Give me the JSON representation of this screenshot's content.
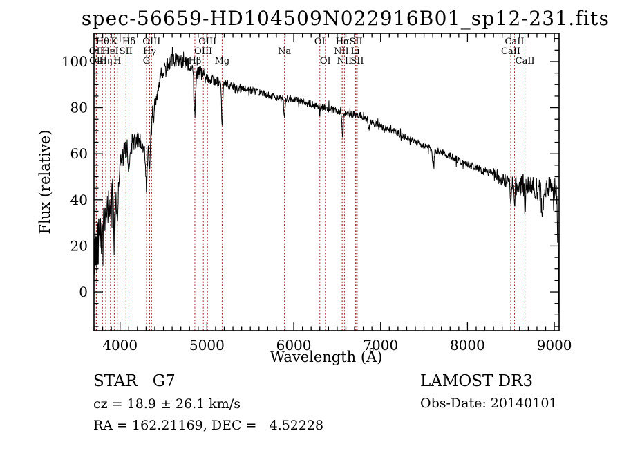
{
  "chart_data": {
    "type": "line",
    "title": "spec-56659-HD104509N022916B01_sp12-231.fits",
    "xlabel": "Wavelength (Å)",
    "ylabel": "Flux (relative)",
    "xlim": [
      3700,
      9055
    ],
    "ylim": [
      -16.8,
      112.3
    ],
    "xticks": [
      4000,
      5000,
      6000,
      7000,
      8000,
      9000
    ],
    "yticks": [
      0,
      20,
      40,
      60,
      80,
      100
    ],
    "x_minor_step": 100,
    "y_minor_step": 5,
    "grid": false,
    "frame_color": "#000000",
    "line_color": "#000000",
    "marker_line_color": "#8e2323",
    "series_name": "spectrum",
    "marker_lines": [
      {
        "label": "OII",
        "wavelength": 3726.0,
        "row": 2
      },
      {
        "label": "OII",
        "wavelength": 3728.8,
        "row": 3
      },
      {
        "label": "Hθ",
        "wavelength": 3798.0,
        "row": 1
      },
      {
        "label": "Hη",
        "wavelength": 3835.4,
        "row": 3
      },
      {
        "label": "HeI",
        "wavelength": 3889.0,
        "row": 2
      },
      {
        "label": "K",
        "wavelength": 3933.7,
        "row": 1
      },
      {
        "label": "H",
        "wavelength": 3968.5,
        "row": 3
      },
      {
        "label": "SII",
        "wavelength": 4068.6,
        "row": 2
      },
      {
        "label": "Hδ",
        "wavelength": 4101.7,
        "row": 1
      },
      {
        "label": "G",
        "wavelength": 4304.4,
        "row": 3
      },
      {
        "label": "Hγ",
        "wavelength": 4340.5,
        "row": 2
      },
      {
        "label": "OIII",
        "wavelength": 4363.2,
        "row": 1
      },
      {
        "label": "Hβ",
        "wavelength": 4861.3,
        "row": 3
      },
      {
        "label": "OIII",
        "wavelength": 4958.9,
        "row": 2
      },
      {
        "label": "OIII",
        "wavelength": 5006.8,
        "row": 1
      },
      {
        "label": "Mg",
        "wavelength": 5175.3,
        "row": 3
      },
      {
        "label": "Na",
        "wavelength": 5892.9,
        "row": 2
      },
      {
        "label": "OI",
        "wavelength": 6300.3,
        "row": 1
      },
      {
        "label": "OI",
        "wavelength": 6363.8,
        "row": 3
      },
      {
        "label": "NII",
        "wavelength": 6548.0,
        "row": 2
      },
      {
        "label": "Hα",
        "wavelength": 6562.8,
        "row": 1
      },
      {
        "label": "NII",
        "wavelength": 6583.4,
        "row": 3
      },
      {
        "label": "Li",
        "wavelength": 6707.8,
        "row": 2
      },
      {
        "label": "SII",
        "wavelength": 6716.4,
        "row": 1
      },
      {
        "label": "SII",
        "wavelength": 6730.8,
        "row": 3
      },
      {
        "label": "CaII",
        "wavelength": 8498.0,
        "row": 2
      },
      {
        "label": "CaII",
        "wavelength": 8542.1,
        "row": 1
      },
      {
        "label": "CaII",
        "wavelength": 8662.1,
        "row": 3
      }
    ],
    "continuum": [
      [
        3700,
        14
      ],
      [
        3740,
        22
      ],
      [
        3780,
        27
      ],
      [
        3820,
        32
      ],
      [
        3860,
        36
      ],
      [
        3900,
        44
      ],
      [
        3950,
        46
      ],
      [
        4000,
        55
      ],
      [
        4060,
        62
      ],
      [
        4120,
        64
      ],
      [
        4180,
        66
      ],
      [
        4240,
        64
      ],
      [
        4300,
        60
      ],
      [
        4360,
        70
      ],
      [
        4420,
        85
      ],
      [
        4470,
        94
      ],
      [
        4520,
        98
      ],
      [
        4580,
        100
      ],
      [
        4650,
        101
      ],
      [
        4720,
        100
      ],
      [
        4800,
        98
      ],
      [
        4861,
        94
      ],
      [
        4920,
        95
      ],
      [
        5000,
        93
      ],
      [
        5080,
        92
      ],
      [
        5175,
        90
      ],
      [
        5260,
        90
      ],
      [
        5350,
        88
      ],
      [
        5450,
        88
      ],
      [
        5550,
        87
      ],
      [
        5650,
        86
      ],
      [
        5750,
        85
      ],
      [
        5850,
        84
      ],
      [
        5950,
        84
      ],
      [
        6050,
        83
      ],
      [
        6150,
        82
      ],
      [
        6250,
        81
      ],
      [
        6350,
        80
      ],
      [
        6450,
        79
      ],
      [
        6563,
        78
      ],
      [
        6650,
        77
      ],
      [
        6750,
        77
      ],
      [
        6850,
        75
      ],
      [
        6950,
        73
      ],
      [
        7050,
        71
      ],
      [
        7150,
        70
      ],
      [
        7250,
        68
      ],
      [
        7350,
        66
      ],
      [
        7450,
        64
      ],
      [
        7550,
        63
      ],
      [
        7650,
        61
      ],
      [
        7750,
        60
      ],
      [
        7850,
        58
      ],
      [
        7950,
        56
      ],
      [
        8050,
        55
      ],
      [
        8150,
        53
      ],
      [
        8250,
        52
      ],
      [
        8350,
        50
      ],
      [
        8450,
        48
      ],
      [
        8550,
        47
      ],
      [
        8650,
        46
      ],
      [
        8750,
        45
      ],
      [
        8850,
        44
      ],
      [
        8950,
        46
      ],
      [
        9020,
        45
      ],
      [
        9040,
        30
      ],
      [
        9052,
        2
      ]
    ],
    "absorption_dips": [
      {
        "line": "Hθ",
        "wavelength": 3798.0,
        "sigma": 6,
        "depth": 8
      },
      {
        "line": "Hη",
        "wavelength": 3835.4,
        "sigma": 6,
        "depth": 8
      },
      {
        "line": "HeI",
        "wavelength": 3889.0,
        "sigma": 6,
        "depth": 7
      },
      {
        "line": "CaII K",
        "wavelength": 3933.7,
        "sigma": 9,
        "depth": 22
      },
      {
        "line": "CaII H",
        "wavelength": 3968.5,
        "sigma": 9,
        "depth": 18
      },
      {
        "line": "SII",
        "wavelength": 4068.6,
        "sigma": 4,
        "depth": 5
      },
      {
        "line": "Hδ",
        "wavelength": 4101.7,
        "sigma": 8,
        "depth": 13
      },
      {
        "line": "G band",
        "wavelength": 4304.4,
        "sigma": 11,
        "depth": 13
      },
      {
        "line": "Hγ",
        "wavelength": 4340.5,
        "sigma": 8,
        "depth": 12
      },
      {
        "line": "Hβ",
        "wavelength": 4861.3,
        "sigma": 8,
        "depth": 16
      },
      {
        "line": "Mg",
        "wavelength": 5175.3,
        "sigma": 7,
        "depth": 18
      },
      {
        "line": "Na",
        "wavelength": 5892.9,
        "sigma": 7,
        "depth": 9
      },
      {
        "line": "OI",
        "wavelength": 6300.3,
        "sigma": 4,
        "depth": 3
      },
      {
        "line": "Hα",
        "wavelength": 6562.8,
        "sigma": 7,
        "depth": 12
      },
      {
        "line": "tell-B",
        "wavelength": 6870.0,
        "sigma": 9,
        "depth": 5
      },
      {
        "line": "tell-A",
        "wavelength": 7605.0,
        "sigma": 10,
        "depth": 6
      },
      {
        "line": "CaII",
        "wavelength": 8498.0,
        "sigma": 6,
        "depth": 9
      },
      {
        "line": "CaII",
        "wavelength": 8542.1,
        "sigma": 6,
        "depth": 10
      },
      {
        "line": "CaII",
        "wavelength": 8662.1,
        "sigma": 6,
        "depth": 9
      },
      {
        "line": "noise",
        "wavelength": 8860.0,
        "sigma": 9,
        "depth": 12
      }
    ],
    "noise_regions": [
      {
        "from": 3700,
        "to": 3790,
        "sigma": 12.0
      },
      {
        "from": 3790,
        "to": 3960,
        "sigma": 8.0
      },
      {
        "from": 3960,
        "to": 4080,
        "sigma": 5.0
      },
      {
        "from": 4080,
        "to": 4400,
        "sigma": 4.5
      },
      {
        "from": 4400,
        "to": 5000,
        "sigma": 3.2
      },
      {
        "from": 5000,
        "to": 5400,
        "sigma": 2.2
      },
      {
        "from": 5400,
        "to": 6300,
        "sigma": 1.6
      },
      {
        "from": 6300,
        "to": 6900,
        "sigma": 1.6
      },
      {
        "from": 6900,
        "to": 7600,
        "sigma": 1.3
      },
      {
        "from": 7600,
        "to": 8300,
        "sigma": 1.7
      },
      {
        "from": 8300,
        "to": 8550,
        "sigma": 3.0
      },
      {
        "from": 8550,
        "to": 9055,
        "sigma": 5.0
      }
    ]
  },
  "footer": {
    "object_class": "STAR   G7",
    "survey": "LAMOST DR3",
    "cz_line": "cz = 18.9 ± 26.1 km/s",
    "obs_date": "Obs-Date: 20140101",
    "radec_line": "RA = 162.21169, DEC =   4.52228"
  }
}
